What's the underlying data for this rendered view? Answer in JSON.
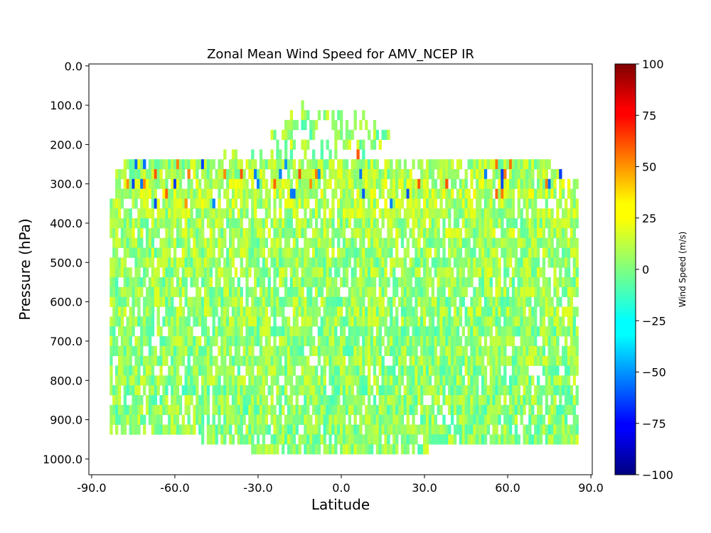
{
  "chart_data": {
    "type": "heatmap",
    "title": "Zonal Mean Wind Speed     for AMV_NCEP IR",
    "xlabel": "Latitude",
    "ylabel": "Pressure (hPa)",
    "xlim": [
      -91,
      90.5
    ],
    "ylim": [
      1040,
      -5
    ],
    "x_ticks": [
      "-90.0",
      "-60.0",
      "-30.0",
      "0.0",
      "30.0",
      "60.0",
      "90.0"
    ],
    "y_ticks": [
      "0.0",
      "100.0",
      "200.0",
      "300.0",
      "400.0",
      "500.0",
      "600.0",
      "700.0",
      "800.0",
      "900.0",
      "1000.0"
    ],
    "colorbar": {
      "label": "Wind Speed (m/s)",
      "min": -100,
      "max": 100,
      "ticks": [
        "100",
        "75",
        "50",
        "25",
        "0",
        "−25",
        "−50",
        "−75",
        "−100"
      ],
      "colormap": "jet"
    },
    "cell_width_deg": 1,
    "cell_height_hpa": 25,
    "note_values": "typical speeds -15 to 20 m/s, scattered jet-level extremes",
    "rows": [
      {
        "p": 100,
        "lat": [
          -15,
          -11
        ],
        "v": 2
      },
      {
        "p": 125,
        "lat": [
          -18,
          10
        ],
        "v": 5
      },
      {
        "p": 150,
        "lat": [
          -20,
          14
        ],
        "v": 3
      },
      {
        "p": 175,
        "lat": [
          -27,
          17
        ],
        "v": 4
      },
      {
        "p": 200,
        "lat": [
          -25,
          18
        ],
        "v": 6
      },
      {
        "p": 225,
        "lat": [
          -44,
          18
        ],
        "v": 4
      },
      {
        "p": 250,
        "lat": [
          -78,
          75
        ],
        "v": 6
      },
      {
        "p": 275,
        "lat": [
          -81,
          79
        ],
        "v": 8
      },
      {
        "p": 300,
        "lat": [
          -81,
          85
        ],
        "v": 10
      },
      {
        "p": 325,
        "lat": [
          -81,
          85
        ],
        "v": 12
      },
      {
        "p": 350,
        "lat": [
          -83,
          85
        ],
        "v": 9
      },
      {
        "p": 375,
        "lat": [
          -83,
          85
        ],
        "v": 8
      },
      {
        "p": 400,
        "lat": [
          -83,
          85
        ],
        "v": 6
      },
      {
        "p": 425,
        "lat": [
          -83,
          85
        ],
        "v": 7
      },
      {
        "p": 450,
        "lat": [
          -83,
          85
        ],
        "v": 5
      },
      {
        "p": 475,
        "lat": [
          -83,
          85
        ],
        "v": 6
      },
      {
        "p": 500,
        "lat": [
          -83,
          85
        ],
        "v": 5
      },
      {
        "p": 525,
        "lat": [
          -83,
          85
        ],
        "v": 6
      },
      {
        "p": 550,
        "lat": [
          -83,
          85
        ],
        "v": 4
      },
      {
        "p": 575,
        "lat": [
          -83,
          85
        ],
        "v": 5
      },
      {
        "p": 600,
        "lat": [
          -83,
          85
        ],
        "v": 4
      },
      {
        "p": 625,
        "lat": [
          -83,
          85
        ],
        "v": 5
      },
      {
        "p": 650,
        "lat": [
          -83,
          85
        ],
        "v": 4
      },
      {
        "p": 675,
        "lat": [
          -83,
          85
        ],
        "v": 3
      },
      {
        "p": 700,
        "lat": [
          -83,
          85
        ],
        "v": 4
      },
      {
        "p": 725,
        "lat": [
          -83,
          85
        ],
        "v": 3
      },
      {
        "p": 750,
        "lat": [
          -83,
          85
        ],
        "v": 4
      },
      {
        "p": 775,
        "lat": [
          -83,
          85
        ],
        "v": 3
      },
      {
        "p": 800,
        "lat": [
          -83,
          85
        ],
        "v": 3
      },
      {
        "p": 825,
        "lat": [
          -83,
          85
        ],
        "v": 2
      },
      {
        "p": 850,
        "lat": [
          -83,
          85
        ],
        "v": 3
      },
      {
        "p": 875,
        "lat": [
          -83,
          85
        ],
        "v": 2
      },
      {
        "p": 900,
        "lat": [
          -83,
          85
        ],
        "v": 3
      },
      {
        "p": 925,
        "lat": [
          -83,
          85
        ],
        "v": 2
      },
      {
        "p": 950,
        "lat": [
          -50,
          85
        ],
        "v": 3
      },
      {
        "p": 975,
        "lat": [
          -32,
          31
        ],
        "v": 4
      }
    ]
  }
}
